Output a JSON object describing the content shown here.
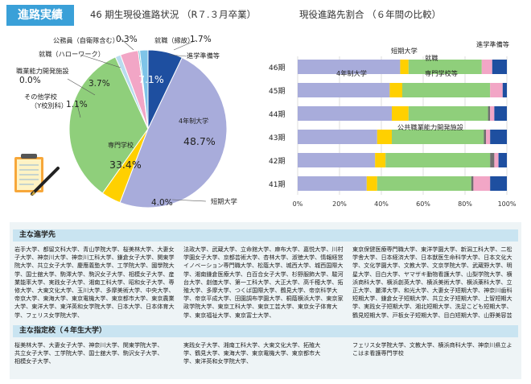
{
  "section_badge": "進路実績",
  "pie_chart_title": "46 期生現役進路状況 （R７.３月卒業）",
  "bar_chart_title": "現役進路先割合 （６年間の比較）",
  "colors": {
    "univ": "#a8acdb",
    "junior": "#ffd000",
    "vocational": "#8fcf7b",
    "public_training": "#6f6f6f",
    "employment": "#f2a6c6",
    "other": "#b8dcef",
    "preparation": "#1e4fa0",
    "badge": "#3aa0d8"
  },
  "pie_labels": {
    "univ": "4年制大学",
    "univ_pct": "48.7%",
    "vocational": "専門学校",
    "vocational_pct": "33.4%",
    "junior": "短期大学",
    "junior_pct": "4.0%",
    "preparation": "進学準備等",
    "preparation_pct": "7.1%",
    "employment_hw": "就職（ハローワーク）",
    "employment_hw_pct": "3.7%",
    "public_line1": "職業能力開発施設",
    "public_pct": "0.0%",
    "other_line1": "その他学校",
    "other_line2": "（Y校別科）",
    "other_pct": "1.1%",
    "civil_servant": "公務員（自衛隊含む）",
    "civil_servant_pct": "0.3%",
    "employment_direct": "就職（縁故）",
    "employment_direct_pct": "1.7%"
  },
  "bar_labels": {
    "univ": "4年制大学",
    "vocational": "専門学校等",
    "junior": "短期大学",
    "employment": "就職",
    "preparation": "進学準備等",
    "public": "公共職業能力開発施設"
  },
  "chart_data": [
    {
      "type": "pie",
      "title": "46 期生現役進路状況 （R７.３月卒業）",
      "slices": [
        {
          "name": "4年制大学",
          "value": 48.7
        },
        {
          "name": "短期大学",
          "value": 4.0
        },
        {
          "name": "専門学校",
          "value": 33.4
        },
        {
          "name": "その他学校（Y校別科）",
          "value": 1.1
        },
        {
          "name": "職業能力開発施設",
          "value": 0.0
        },
        {
          "name": "就職（ハローワーク）",
          "value": 3.7
        },
        {
          "name": "公務員（自衛隊含む）",
          "value": 0.3
        },
        {
          "name": "就職（縁故）",
          "value": 1.7
        },
        {
          "name": "進学準備等",
          "value": 7.1
        }
      ]
    },
    {
      "type": "bar",
      "orientation": "horizontal",
      "stacked": true,
      "title": "現役進路先割合 （６年間の比較）",
      "categories": [
        "46期",
        "45期",
        "44期",
        "43期",
        "42期",
        "41期"
      ],
      "series": [
        {
          "name": "4年制大学",
          "values": [
            49,
            44,
            45,
            38,
            37,
            33
          ]
        },
        {
          "name": "短期大学",
          "values": [
            4,
            6,
            8,
            7,
            5,
            5
          ]
        },
        {
          "name": "専門学校等",
          "values": [
            35,
            42,
            38,
            44,
            50,
            45
          ]
        },
        {
          "name": "公共職業能力開発施設",
          "values": [
            0,
            0,
            1,
            1,
            2,
            1
          ]
        },
        {
          "name": "就職",
          "values": [
            5,
            6,
            2,
            2,
            2,
            8
          ]
        },
        {
          "name": "進学準備等",
          "values": [
            7,
            2,
            6,
            8,
            4,
            8
          ]
        }
      ],
      "xlim": [
        0,
        100
      ],
      "xticks": [
        "0%",
        "20%",
        "40%",
        "60%",
        "80%",
        "100%"
      ]
    }
  ],
  "main_destinations": {
    "heading": "主な進学先",
    "col1": "岩手大学、都留文科大学、青山学院大学、桜美林大学、大妻女子大学、神奈川大学、神奈川工科大学、鎌倉女子大学、関東学院大学、共立女子大学、慶應義塾大学、工学院大学、國學院大学、国士舘大学、駒澤大学、駒沢女子大学、相模女子大学、産業能率大学、実践女子大学、湘南工科大学、昭和女子大学、専修大学、大東文化大学、玉川大学、多摩美術大学、中央大学、帝京大学、東海大学、東京電機大学、東京都市大学、東京農業大学、東洋大学、東洋英和女学院大学、日本大学、日本体育大学、フェリス女学院大学、",
    "col2": "法政大学、武蔵大学、立命館大学、麻布大学、嘉悦大学、川村学園女子大学、京都芸術大学、杏林大学、淑徳大学、情報経営イノベーション専門職大学、松蔭大学、城西大学、城西国際大学、湘南鎌倉医療大学、白百合女子大学、杉野服飾大学、駿河台大学、創価大学、第一工科大学、大正大学、高千穂大学、拓殖大学、多摩大学、つくば国際大学、鶴見大学、帝京科学大学、帝京平成大学、田園調布学園大学、桐蔭横浜大学、東京家政学院大学、東京工科大学、東京工芸大学、東京女子体育大学、東京福祉大学、東京富士大学、",
    "col3": "東京保健医療専門職大学、東洋学園大学、新潟工科大学、二松学舎大学、日本経済大学、日本獣医生命科学大学、日本文化大学、文化学園大学、文教大学、文京学院大学、武蔵野大学、明星大学、目白大学、ヤマザキ動物看護大学、山梨学院大学、横浜商科大学、横浜創英大学、横浜美術大学、横浜薬科大学、立正大学、麗澤大学、和光大学、大妻女子短期大学、神奈川歯科短期大学、鎌倉女子短期大学、共立女子短期大学、上智短期大学、実践女子短期大学、湘北短期大学、洗足こども短期大学、鶴見短期大学、戸板女子短期大学、目白短期大学、山野美容芸術短期"
  },
  "designated_schools": {
    "heading": "主な指定校（４年生大学）",
    "col1": "桜美林大学、大妻女子大学、神奈川大学、関東学院大学、共立女子大学、工学院大学、国士舘大学、駒沢女子大学、相模女子大学、",
    "col2": "実践女子大学、湘南工科大学、大東文化大学、拓殖大学、鶴見大学、東海大学、東京電機大学、東京都市大学、東洋英和女学院大学、",
    "col3": "フェリス女学院大学、文教大学、横浜商科大学、神奈川県立よこはま看護専門学校"
  }
}
